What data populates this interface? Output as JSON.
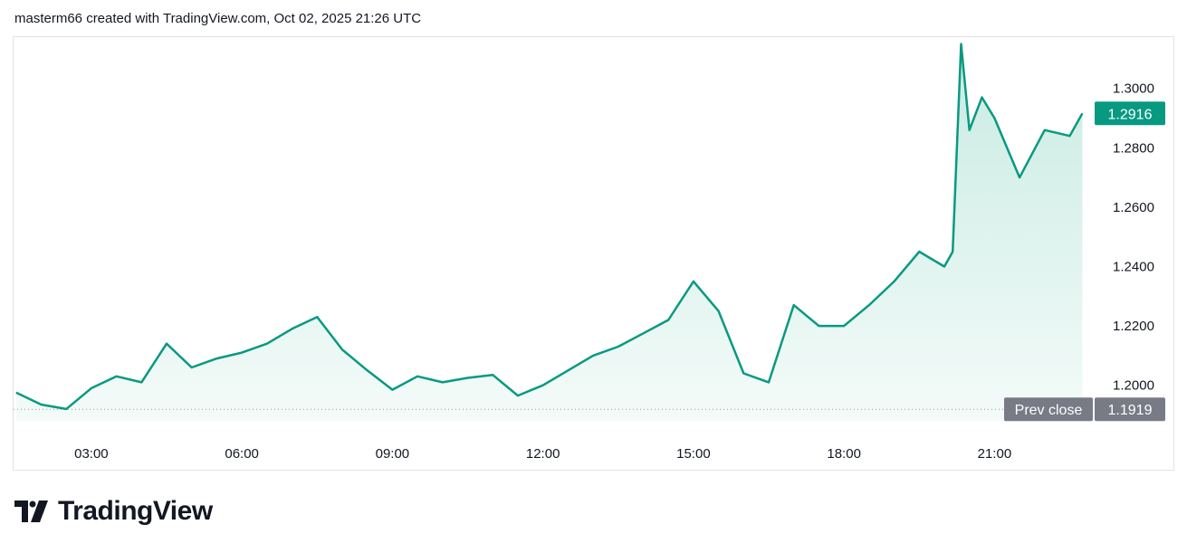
{
  "header": {
    "attribution": "masterm66 created with TradingView.com, Oct 02, 2025 21:26 UTC"
  },
  "footer": {
    "brand": "TradingView"
  },
  "colors": {
    "line": "#089981",
    "fill_top": "#c8ebe2",
    "fill_bottom": "#f4fbf9",
    "badge_last": "#089981",
    "badge_prev": "#787b86"
  },
  "chart_data": {
    "type": "area",
    "title": "",
    "xlabel": "",
    "ylabel": "",
    "x_ticks": [
      "03:00",
      "06:00",
      "09:00",
      "12:00",
      "15:00",
      "18:00",
      "21:00"
    ],
    "y_ticks": [
      "1.3000",
      "1.2800",
      "1.2600",
      "1.2400",
      "1.2200",
      "1.2000"
    ],
    "ylim": [
      1.188,
      1.317
    ],
    "xlim": [
      "01:27",
      "22:50"
    ],
    "grid": false,
    "last_price": {
      "value": 1.2916,
      "label": "1.2916"
    },
    "prev_close": {
      "label": "Prev close",
      "value": 1.1919,
      "value_label": "1.1919"
    },
    "series": [
      {
        "x": [
          "01:30",
          "02:00",
          "02:30",
          "03:00",
          "03:30",
          "04:00",
          "04:30",
          "05:00",
          "05:30",
          "06:00",
          "06:30",
          "07:00",
          "07:30",
          "08:00",
          "08:30",
          "09:00",
          "09:30",
          "10:00",
          "10:30",
          "11:00",
          "11:30",
          "12:00",
          "12:30",
          "13:00",
          "13:30",
          "14:00",
          "14:30",
          "15:00",
          "15:30",
          "16:00",
          "16:30",
          "17:00",
          "17:30",
          "18:00",
          "18:30",
          "19:00",
          "19:30",
          "20:00",
          "20:10",
          "20:20",
          "20:30",
          "20:45",
          "21:00",
          "21:30",
          "22:00",
          "22:30",
          "22:45"
        ],
        "values": [
          1.1975,
          1.1935,
          1.192,
          1.199,
          1.203,
          1.201,
          1.214,
          1.206,
          1.209,
          1.211,
          1.214,
          1.219,
          1.223,
          1.212,
          1.205,
          1.1985,
          1.203,
          1.201,
          1.2025,
          1.2035,
          1.1965,
          1.2,
          1.205,
          1.21,
          1.213,
          1.2175,
          1.222,
          1.235,
          1.225,
          1.204,
          1.201,
          1.227,
          1.22,
          1.22,
          1.227,
          1.235,
          1.245,
          1.24,
          1.245,
          1.315,
          1.286,
          1.297,
          1.29,
          1.27,
          1.286,
          1.284,
          1.2916
        ]
      }
    ]
  }
}
